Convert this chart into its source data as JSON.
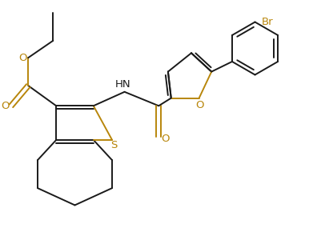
{
  "bg_color": "#ffffff",
  "line_color": "#1a1a1a",
  "S_color": "#b8860b",
  "O_color": "#b8860b",
  "Br_color": "#b8860b",
  "N_color": "#1a1a1a",
  "lw": 1.4,
  "dbo": 0.08,
  "figsize": [
    3.91,
    3.15
  ],
  "dpi": 100,
  "xlim": [
    0,
    10
  ],
  "ylim": [
    0,
    8
  ]
}
